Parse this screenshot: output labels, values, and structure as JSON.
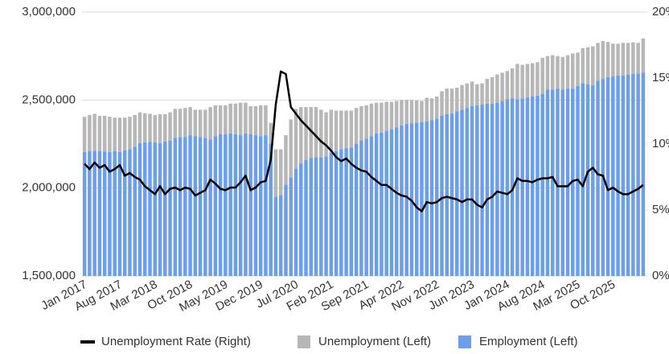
{
  "chart_data": {
    "type": "bar",
    "stacked": true,
    "grid": true,
    "legend": "bottom",
    "categories": [
      "Jan 2017",
      null,
      null,
      null,
      null,
      null,
      null,
      "Aug 2017",
      null,
      null,
      null,
      null,
      null,
      null,
      "Mar 2018",
      null,
      null,
      null,
      null,
      null,
      null,
      "Oct 2018",
      null,
      null,
      null,
      null,
      null,
      null,
      "May 2019",
      null,
      null,
      null,
      null,
      null,
      null,
      "Dec 2019",
      null,
      null,
      null,
      null,
      null,
      null,
      "Jul 2020",
      null,
      null,
      null,
      null,
      null,
      null,
      "Feb 2021",
      null,
      null,
      null,
      null,
      null,
      null,
      "Sep 2021",
      null,
      null,
      null,
      null,
      null,
      null,
      "Apr 2022",
      null,
      null,
      null,
      null,
      null,
      null,
      "Nov 2022",
      null,
      null,
      null,
      null,
      null,
      null,
      "Jun 2023",
      null,
      null,
      null,
      null,
      null,
      null,
      "Jan 2024",
      null,
      null,
      null,
      null,
      null,
      null,
      "Aug 2024",
      null,
      null,
      null,
      null,
      null,
      null,
      "Mar 2025",
      null,
      null,
      null,
      null,
      null,
      null,
      "Oct 2025",
      null,
      null,
      null,
      null,
      null,
      null
    ],
    "ylim": [
      1500000,
      3000000
    ],
    "yticks": [
      {
        "value": 1500000,
        "label": "1,500,000"
      },
      {
        "value": 2000000,
        "label": "2,000,000"
      },
      {
        "value": 2500000,
        "label": "2,500,000"
      },
      {
        "value": 3000000,
        "label": "3,000,000"
      }
    ],
    "y2lim": [
      0,
      20
    ],
    "y2ticks": [
      {
        "value": 0,
        "label": "0%"
      },
      {
        "value": 5,
        "label": "5%"
      },
      {
        "value": 10,
        "label": "10%"
      },
      {
        "value": 15,
        "label": "15%"
      },
      {
        "value": 20,
        "label": "20%"
      }
    ],
    "series": [
      {
        "name": "Unemployment Rate (Right)",
        "type": "line",
        "axis": "y2",
        "color": "#000000",
        "values": [
          8.5,
          8.1,
          8.6,
          8.2,
          8.4,
          7.9,
          8.1,
          8.4,
          7.6,
          7.8,
          7.5,
          7.3,
          6.8,
          6.5,
          6.2,
          6.8,
          6.2,
          6.6,
          6.7,
          6.5,
          6.7,
          6.6,
          6.1,
          6.3,
          6.5,
          7.3,
          7.0,
          6.6,
          6.5,
          6.7,
          6.7,
          7.1,
          7.6,
          6.5,
          6.7,
          7.1,
          7.2,
          8.8,
          13.0,
          15.5,
          15.3,
          12.8,
          12.3,
          11.8,
          11.4,
          11.0,
          10.6,
          10.2,
          9.9,
          9.5,
          9.0,
          8.7,
          8.9,
          8.5,
          8.2,
          8.0,
          7.9,
          7.5,
          7.2,
          6.9,
          6.9,
          6.6,
          6.3,
          6.1,
          6.0,
          5.7,
          5.2,
          4.9,
          5.6,
          5.5,
          5.6,
          5.9,
          6.0,
          5.9,
          5.8,
          5.6,
          5.8,
          5.8,
          5.4,
          5.2,
          5.8,
          6.0,
          6.4,
          6.3,
          6.2,
          6.5,
          7.4,
          7.2,
          7.2,
          7.1,
          7.3,
          7.4,
          7.4,
          7.5,
          6.8,
          6.8,
          6.8,
          7.2,
          7.3,
          6.8,
          7.9,
          8.2,
          7.7,
          7.6,
          6.5,
          6.7,
          6.4,
          6.2,
          6.2,
          6.4,
          6.6,
          6.9
        ]
      },
      {
        "name": "Unemployment (Left)",
        "type": "bar",
        "color": "#b7b7b7",
        "values": [
          200000,
          205000,
          210000,
          200000,
          202000,
          200000,
          190000,
          195000,
          185000,
          185000,
          180000,
          175000,
          165000,
          160000,
          155000,
          165000,
          155000,
          160000,
          165000,
          160000,
          165000,
          160000,
          150000,
          155000,
          160000,
          185000,
          175000,
          165000,
          165000,
          170000,
          175000,
          185000,
          175000,
          160000,
          165000,
          175000,
          170000,
          120000,
          270000,
          260000,
          280000,
          330000,
          340000,
          320000,
          300000,
          290000,
          285000,
          270000,
          250000,
          245000,
          230000,
          220000,
          215000,
          210000,
          205000,
          195000,
          190000,
          185000,
          175000,
          170000,
          165000,
          155000,
          150000,
          145000,
          135000,
          130000,
          125000,
          120000,
          135000,
          125000,
          125000,
          140000,
          145000,
          140000,
          135000,
          140000,
          140000,
          140000,
          120000,
          120000,
          140000,
          150000,
          160000,
          160000,
          160000,
          170000,
          200000,
          190000,
          190000,
          190000,
          190000,
          205000,
          190000,
          195000,
          185000,
          185000,
          190000,
          200000,
          190000,
          200000,
          210000,
          220000,
          215000,
          215000,
          200000,
          185000,
          180000,
          185000,
          180000,
          180000,
          175000,
          195000
        ]
      },
      {
        "name": "Employment (Left)",
        "type": "bar",
        "color": "#6d9eeb",
        "values": [
          2205000,
          2210000,
          2212000,
          2210000,
          2208000,
          2205000,
          2210000,
          2205000,
          2215000,
          2220000,
          2235000,
          2255000,
          2260000,
          2262000,
          2260000,
          2255000,
          2265000,
          2270000,
          2285000,
          2290000,
          2290000,
          2300000,
          2295000,
          2290000,
          2285000,
          2275000,
          2295000,
          2305000,
          2305000,
          2310000,
          2305000,
          2300000,
          2310000,
          2305000,
          2300000,
          2295000,
          2300000,
          2250000,
          1950000,
          1960000,
          2020000,
          2060000,
          2110000,
          2140000,
          2160000,
          2170000,
          2175000,
          2175000,
          2180000,
          2200000,
          2210000,
          2220000,
          2225000,
          2230000,
          2250000,
          2270000,
          2280000,
          2295000,
          2310000,
          2315000,
          2325000,
          2335000,
          2345000,
          2355000,
          2365000,
          2370000,
          2372000,
          2375000,
          2378000,
          2385000,
          2395000,
          2410000,
          2420000,
          2425000,
          2435000,
          2445000,
          2455000,
          2465000,
          2470000,
          2475000,
          2480000,
          2480000,
          2485000,
          2495000,
          2505000,
          2510000,
          2505000,
          2510000,
          2515000,
          2520000,
          2525000,
          2535000,
          2560000,
          2560000,
          2565000,
          2560000,
          2565000,
          2565000,
          2580000,
          2595000,
          2590000,
          2585000,
          2610000,
          2620000,
          2630000,
          2635000,
          2640000,
          2640000,
          2645000,
          2648000,
          2650000,
          2655000
        ]
      }
    ]
  }
}
